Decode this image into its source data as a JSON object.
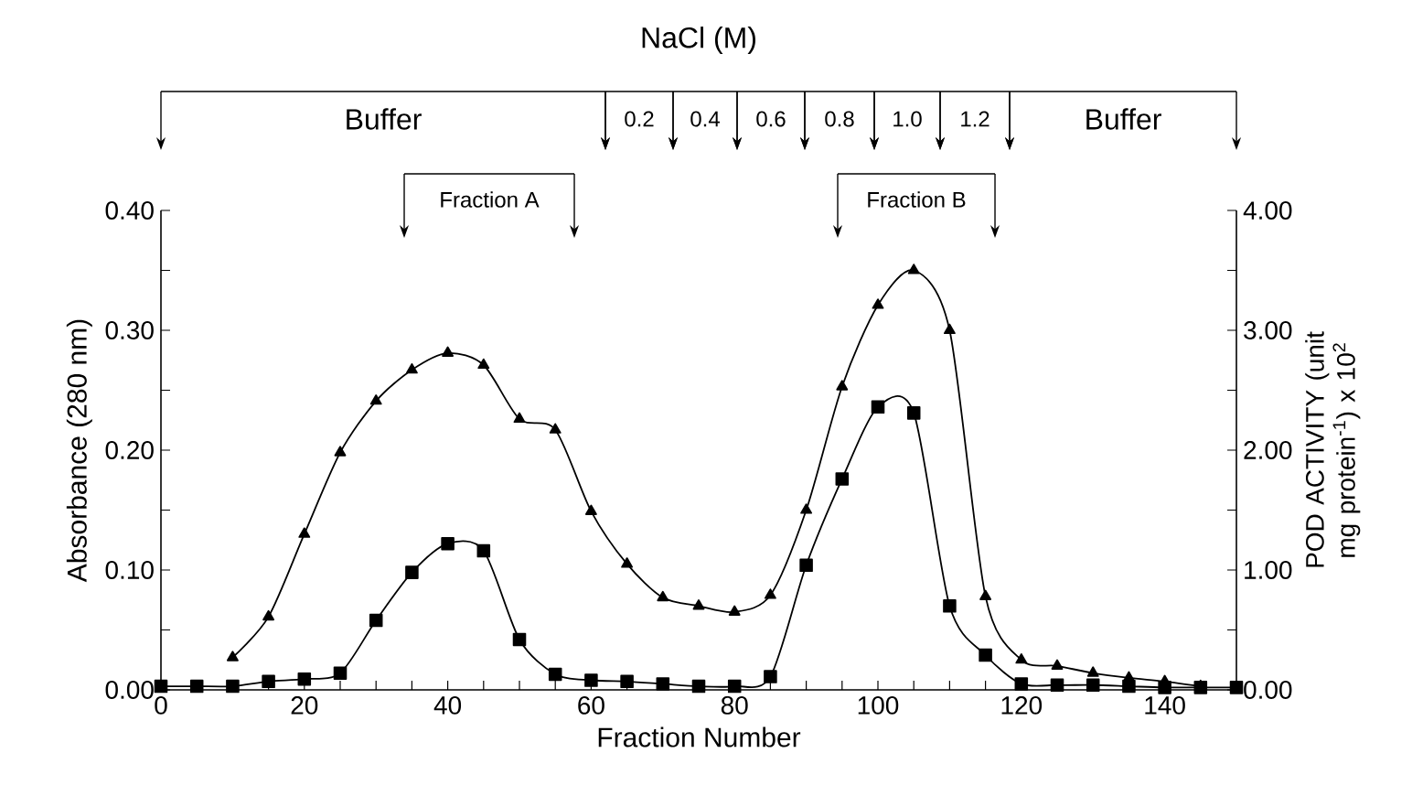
{
  "chart_data": {
    "type": "line",
    "title": "NaCl (M)",
    "xlabel": "Fraction Number",
    "ylabel": "Absorbance (280 nm)",
    "y2label": "POD ACTIVITY (unit mg protein$^{-1}$) x 10$^{2}$",
    "x": [
      0,
      5,
      10,
      15,
      20,
      25,
      30,
      35,
      40,
      45,
      50,
      55,
      60,
      65,
      70,
      75,
      80,
      85,
      90,
      95,
      100,
      105,
      110,
      115,
      120,
      125,
      130,
      135,
      140,
      145,
      150
    ],
    "series": [
      {
        "color": "#000000",
        "marker": "triangle",
        "values": [
          null,
          null,
          0.027,
          0.061,
          0.13,
          0.198,
          0.241,
          0.267,
          0.281,
          0.271,
          0.226,
          0.217,
          0.149,
          0.105,
          0.077,
          0.07,
          0.065,
          0.079,
          0.15,
          0.253,
          0.321,
          0.35,
          0.3,
          0.078,
          0.025,
          0.02,
          0.014,
          0.01,
          0.007,
          0.003,
          null
        ]
      },
      {
        "color": "#000000",
        "marker": "square",
        "axis": "y2",
        "values": [
          0.03,
          0.03,
          0.03,
          0.07,
          0.09,
          0.14,
          0.58,
          0.98,
          1.22,
          1.16,
          0.42,
          0.13,
          0.08,
          0.07,
          0.05,
          0.03,
          0.03,
          0.11,
          1.04,
          1.76,
          2.36,
          2.31,
          0.7,
          0.29,
          0.05,
          0.04,
          0.04,
          0.03,
          0.02,
          0.02,
          0.02
        ]
      }
    ],
    "xlim": [
      0,
      150
    ],
    "xticks": [
      0,
      {
        "value": 5,
        "label": null
      },
      {
        "value": 10,
        "label": null
      },
      {
        "value": 15,
        "label": null
      },
      20,
      {
        "value": 25,
        "label": null
      },
      {
        "value": 30,
        "label": null
      },
      {
        "value": 35,
        "label": null
      },
      40,
      {
        "value": 45,
        "label": null
      },
      {
        "value": 50,
        "label": null
      },
      {
        "value": 55,
        "label": null
      },
      60,
      {
        "value": 65,
        "label": null
      },
      {
        "value": 70,
        "label": null
      },
      {
        "value": 75,
        "label": null
      },
      80,
      {
        "value": 85,
        "label": null
      },
      {
        "value": 90,
        "label": null
      },
      {
        "value": 95,
        "label": null
      },
      100,
      {
        "value": 105,
        "label": null
      },
      {
        "value": 110,
        "label": null
      },
      {
        "value": 115,
        "label": null
      },
      120,
      {
        "value": 125,
        "label": null
      },
      {
        "value": 130,
        "label": null
      },
      {
        "value": 135,
        "label": null
      },
      140,
      {
        "value": 145,
        "label": null
      },
      {
        "value": 150,
        "label": null
      }
    ],
    "ylim": [
      0,
      0.4
    ],
    "yticks": [
      {
        "value": 0,
        "label": "0.00"
      },
      {
        "value": 0.05,
        "label": null
      },
      {
        "value": 0.1,
        "label": "0.10"
      },
      {
        "value": 0.15,
        "label": null
      },
      {
        "value": 0.2,
        "label": "0.20"
      },
      {
        "value": 0.25,
        "label": null
      },
      {
        "value": 0.3,
        "label": "0.30"
      },
      {
        "value": 0.35,
        "label": null
      },
      {
        "value": 0.4,
        "label": "0.40"
      }
    ],
    "y2lim": [
      0,
      4
    ],
    "y2ticks": [
      {
        "value": 0,
        "label": "0.00"
      },
      {
        "value": 0.5,
        "label": null
      },
      {
        "value": 1,
        "label": "1.00"
      },
      {
        "value": 1.5,
        "label": null
      },
      {
        "value": 2,
        "label": "2.00"
      },
      {
        "value": 2.5,
        "label": null
      },
      {
        "value": 3,
        "label": "3.00"
      },
      {
        "value": 3.5,
        "label": null
      },
      {
        "value": 4,
        "label": "4.00"
      }
    ],
    "annotations": [
      "Buffer",
      "0.2",
      "0.4",
      "0.6",
      "0.8",
      "1.0",
      "1.2",
      "Buffer",
      "Fraction A",
      "Fraction B"
    ]
  }
}
